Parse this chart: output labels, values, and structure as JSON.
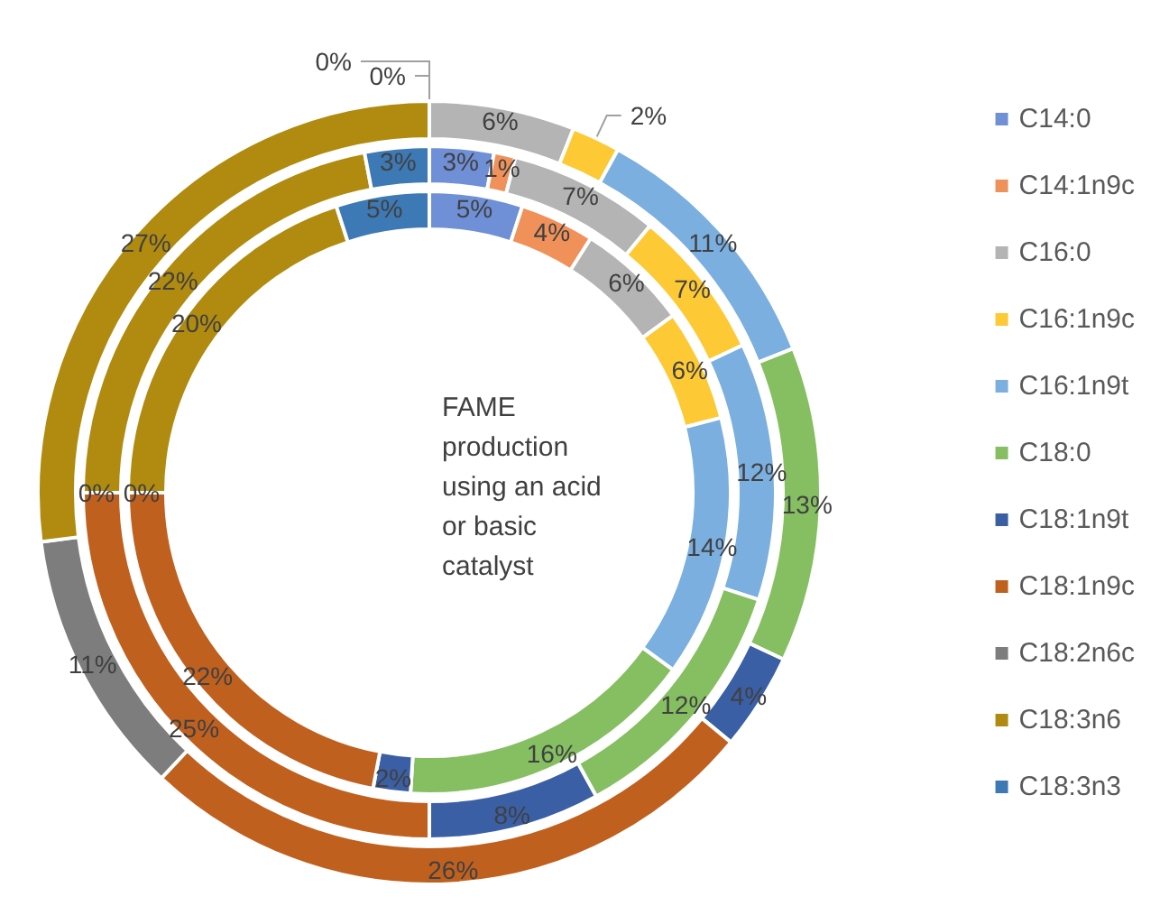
{
  "chart_data": {
    "type": "donut",
    "categories": [
      "C14:0",
      "C14:1n9c",
      "C16:0",
      "C16:1n9c",
      "C16:1n9t",
      "C18:0",
      "C18:1n9t",
      "C18:1n9c",
      "C18:2n6c",
      "C18:3n6",
      "C18:3n3"
    ],
    "colors": [
      "#6f8fd6",
      "#f0915a",
      "#b4b4b4",
      "#fdc934",
      "#7aafe0",
      "#85bf62",
      "#3a5fa5",
      "#c0601f",
      "#7d7d7d",
      "#b08b10",
      "#3d79b4"
    ],
    "series": [
      {
        "values": [
          0,
          0,
          6,
          2,
          11,
          13,
          4,
          26,
          11,
          27,
          null
        ],
        "value_labels": [
          "0%",
          "0%",
          "6%",
          "2%",
          "11%",
          "13%",
          "4%",
          "26%",
          "11%",
          "27%",
          null
        ]
      },
      {
        "values": [
          3,
          1,
          7,
          7,
          12,
          12,
          8,
          25,
          0,
          22,
          3
        ],
        "value_labels": [
          "3%",
          "1%",
          "7%",
          "7%",
          "12%",
          "12%",
          "8%",
          "25%",
          "0%",
          "22%",
          "3%"
        ]
      },
      {
        "values": [
          5,
          4,
          6,
          6,
          14,
          16,
          2,
          22,
          0,
          20,
          5
        ],
        "value_labels": [
          "5%",
          "4%",
          "6%",
          "6%",
          "14%",
          "16%",
          "2%",
          "22%",
          "0%",
          "20%",
          "5%"
        ]
      }
    ],
    "legend": "right",
    "annotations": [
      "FAME production using an acid or basic catalyst"
    ]
  }
}
